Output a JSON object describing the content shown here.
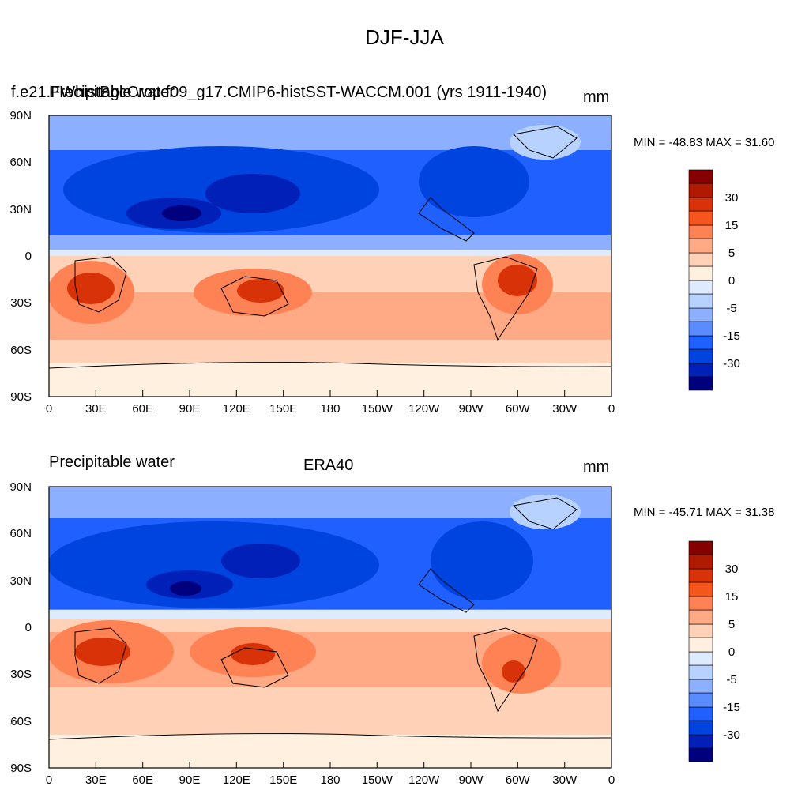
{
  "figure_title": "DJF-JJA",
  "colorbar": {
    "colors": [
      "#00007f",
      "#0020b8",
      "#0044e0",
      "#1f60ff",
      "#5a8cff",
      "#8cb0ff",
      "#b8d2ff",
      "#deebff",
      "#fff0e0",
      "#ffd2b8",
      "#ffaa85",
      "#ff8255",
      "#f5561e",
      "#d83208",
      "#b01a00",
      "#850000"
    ],
    "labels": [
      "-30",
      "-15",
      "-5",
      "0",
      "5",
      "15",
      "30"
    ]
  },
  "x_ticks": [
    "0",
    "30E",
    "60E",
    "90E",
    "120E",
    "150E",
    "180",
    "150W",
    "120W",
    "90W",
    "60W",
    "30W",
    "0"
  ],
  "y_ticks": [
    "90N",
    "60N",
    "30N",
    "0",
    "30S",
    "60S",
    "90S"
  ],
  "panels": [
    {
      "left_title": "Precipitable water",
      "center_title": "f.e21.FWhistBgcCrop.f09_g17.CMIP6-histSST-WACCM.001 (yrs 1911-1940)",
      "units": "mm",
      "min_max": "MIN = -48.83 MAX =  31.60"
    },
    {
      "left_title": "Precipitable water",
      "center_title": "ERA40",
      "units": "mm",
      "min_max": "MIN = -45.71 MAX =  31.38"
    }
  ]
}
